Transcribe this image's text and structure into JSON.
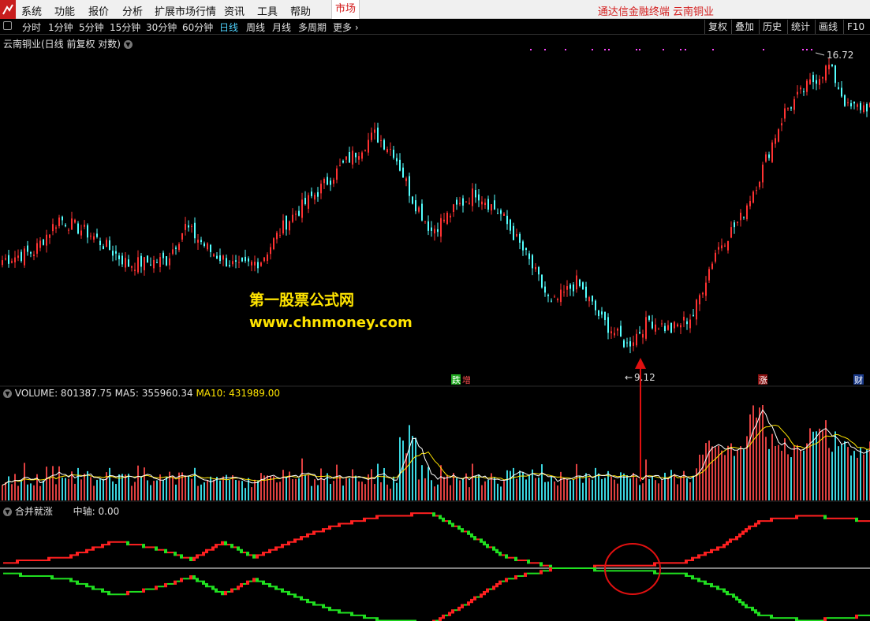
{
  "menubar": {
    "items": [
      "系统",
      "功能",
      "报价",
      "分析",
      "扩展市场行情",
      "资讯",
      "工具",
      "帮助"
    ],
    "market_tab": "市场",
    "brand": "通达信金融终端  云南铜业"
  },
  "toolbar": {
    "periods": [
      "分时",
      "1分钟",
      "5分钟",
      "15分钟",
      "30分钟",
      "60分钟",
      "日线",
      "周线",
      "月线",
      "多周期",
      "更多"
    ],
    "active_period": "日线",
    "right_buttons": [
      "复权",
      "叠加",
      "历史",
      "统计",
      "画线",
      "F10"
    ]
  },
  "price_panel": {
    "title": "云南铜业(日线 前复权 对数)",
    "high_label": "16.72",
    "low_label": "9.12",
    "event_tags": [
      {
        "text": "跌",
        "color": "#1fa81f"
      },
      {
        "text": "增",
        "color": "#d42020"
      },
      {
        "text": "涨",
        "color": "#d42020"
      },
      {
        "text": "财",
        "color": "#1a5fd6"
      }
    ]
  },
  "watermark": {
    "line1": "第一股票公式网",
    "line2": "www.chnmoney.com"
  },
  "volume_panel": {
    "label_volume": "VOLUME: 801387.75",
    "label_ma5": "MA5: 355960.34",
    "label_ma10": "MA10: 431989.00"
  },
  "indicator_panel": {
    "name": "合并就涨",
    "axis_label": "中轴: 0.00"
  },
  "colors": {
    "up": "#ff3232",
    "down": "#54ffff",
    "ind_up": "#ff2020",
    "ind_down": "#20e020",
    "ma5": "#ffffff",
    "ma10": "#ffe400",
    "annotation": "#e01010"
  },
  "chart_data": [
    {
      "type": "candlestick",
      "title": "云南铜业(日线 前复权 对数)",
      "y_scale": "log",
      "ylim": [
        8.8,
        17.2
      ],
      "annotations": {
        "max": 16.72,
        "min": 9.12
      },
      "close_path_keypoints": [
        [
          0,
          11.1
        ],
        [
          10,
          11.3
        ],
        [
          18,
          12.1
        ],
        [
          28,
          11.7
        ],
        [
          40,
          11.0
        ],
        [
          52,
          11.1
        ],
        [
          58,
          11.9
        ],
        [
          66,
          11.3
        ],
        [
          75,
          10.9
        ],
        [
          82,
          11.1
        ],
        [
          90,
          12.0
        ],
        [
          100,
          12.8
        ],
        [
          110,
          13.7
        ],
        [
          118,
          14.4
        ],
        [
          124,
          13.9
        ],
        [
          130,
          12.6
        ],
        [
          136,
          11.8
        ],
        [
          143,
          12.3
        ],
        [
          150,
          12.8
        ],
        [
          158,
          12.2
        ],
        [
          166,
          11.2
        ],
        [
          174,
          10.1
        ],
        [
          182,
          10.6
        ],
        [
          190,
          9.8
        ],
        [
          198,
          9.3
        ],
        [
          205,
          9.8
        ],
        [
          212,
          9.6
        ],
        [
          219,
          9.9
        ],
        [
          226,
          11.3
        ],
        [
          234,
          12.1
        ],
        [
          240,
          13.2
        ],
        [
          248,
          15.1
        ],
        [
          256,
          16.0
        ],
        [
          262,
          16.6
        ],
        [
          268,
          15.2
        ],
        [
          276,
          15.3
        ]
      ]
    },
    {
      "type": "bar",
      "title": "VOLUME",
      "series_values_latest": {
        "VOLUME": 801387.75,
        "MA5": 355960.34,
        "MA10": 431989.0
      }
    },
    {
      "type": "line",
      "title": "合并就涨",
      "axis_value": 0.0,
      "upper_keypoints": [
        [
          0,
          0.05
        ],
        [
          20,
          0.1
        ],
        [
          36,
          0.26
        ],
        [
          50,
          0.18
        ],
        [
          60,
          0.08
        ],
        [
          70,
          0.25
        ],
        [
          80,
          0.1
        ],
        [
          95,
          0.3
        ],
        [
          105,
          0.4
        ],
        [
          120,
          0.5
        ],
        [
          136,
          0.52
        ],
        [
          145,
          0.38
        ],
        [
          160,
          0.1
        ],
        [
          176,
          0.0
        ],
        [
          195,
          0.02
        ],
        [
          215,
          0.05
        ],
        [
          228,
          0.2
        ],
        [
          240,
          0.45
        ],
        [
          255,
          0.5
        ],
        [
          276,
          0.45
        ]
      ],
      "lower_keypoints": [
        [
          0,
          -0.05
        ],
        [
          20,
          -0.1
        ],
        [
          36,
          -0.26
        ],
        [
          50,
          -0.18
        ],
        [
          60,
          -0.08
        ],
        [
          70,
          -0.25
        ],
        [
          80,
          -0.1
        ],
        [
          95,
          -0.3
        ],
        [
          105,
          -0.4
        ],
        [
          120,
          -0.5
        ],
        [
          136,
          -0.52
        ],
        [
          145,
          -0.38
        ],
        [
          160,
          -0.1
        ],
        [
          176,
          0.0
        ],
        [
          195,
          -0.02
        ],
        [
          215,
          -0.05
        ],
        [
          228,
          -0.2
        ],
        [
          240,
          -0.45
        ],
        [
          255,
          -0.5
        ],
        [
          276,
          -0.45
        ]
      ]
    }
  ]
}
